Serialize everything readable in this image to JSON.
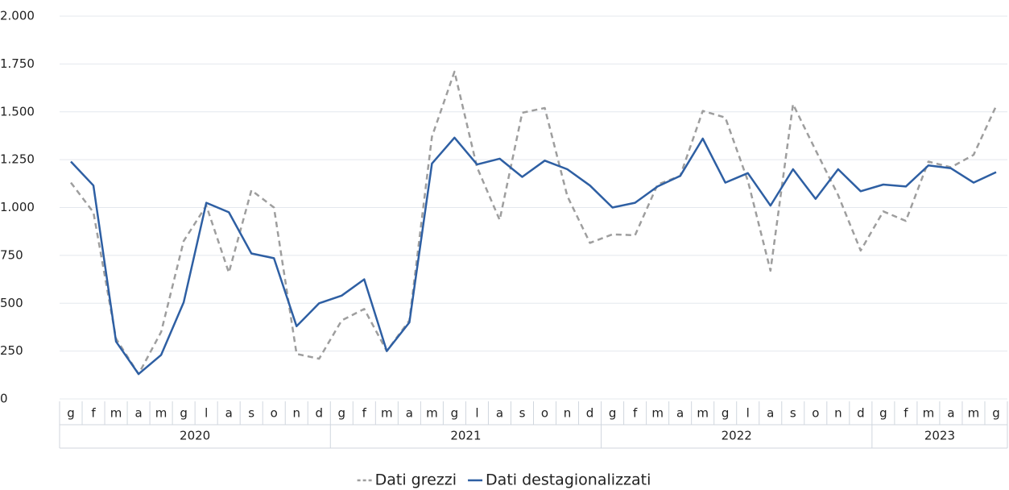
{
  "chart_data": {
    "type": "line",
    "category_groups": [
      {
        "label": "2020",
        "categories": [
          "g",
          "f",
          "m",
          "a",
          "m",
          "g",
          "l",
          "a",
          "s",
          "o",
          "n",
          "d"
        ]
      },
      {
        "label": "2021",
        "categories": [
          "g",
          "f",
          "m",
          "a",
          "m",
          "g",
          "l",
          "a",
          "s",
          "o",
          "n",
          "d"
        ]
      },
      {
        "label": "2022",
        "categories": [
          "g",
          "f",
          "m",
          "a",
          "m",
          "g",
          "l",
          "a",
          "s",
          "o",
          "n",
          "d"
        ]
      },
      {
        "label": "2023",
        "categories": [
          "g",
          "f",
          "m",
          "a",
          "m",
          "g"
        ]
      }
    ],
    "series": [
      {
        "name": "Dati grezzi",
        "color": "#9e9e9e",
        "dashed": true,
        "values": [
          1130,
          975,
          315,
          130,
          350,
          825,
          1010,
          660,
          1090,
          1000,
          235,
          210,
          410,
          470,
          250,
          410,
          1370,
          1710,
          1210,
          935,
          1495,
          1520,
          1060,
          815,
          860,
          855,
          1120,
          1165,
          1505,
          1470,
          1140,
          670,
          1540,
          1300,
          1065,
          775,
          980,
          930,
          1240,
          1210,
          1275,
          1530
        ]
      },
      {
        "name": "Dati destagionalizzati",
        "color": "#2e5fa3",
        "dashed": false,
        "values": [
          1240,
          1115,
          300,
          130,
          230,
          505,
          1025,
          975,
          760,
          735,
          380,
          500,
          540,
          625,
          250,
          400,
          1230,
          1365,
          1225,
          1255,
          1160,
          1245,
          1200,
          1115,
          1000,
          1025,
          1110,
          1165,
          1360,
          1130,
          1180,
          1010,
          1200,
          1045,
          1200,
          1085,
          1120,
          1110,
          1220,
          1205,
          1130,
          1185
        ]
      }
    ],
    "ylim": [
      0,
      2000
    ],
    "yticks": [
      0,
      250,
      500,
      750,
      {
        "value": 1000,
        "label": "1.000"
      },
      {
        "value": 1250,
        "label": "1.250"
      },
      {
        "value": 1500,
        "label": "1.500"
      },
      {
        "value": 1750,
        "label": "1.750"
      },
      {
        "value": 2000,
        "label": "2.000"
      }
    ],
    "grid": true,
    "legend": "bottom"
  }
}
